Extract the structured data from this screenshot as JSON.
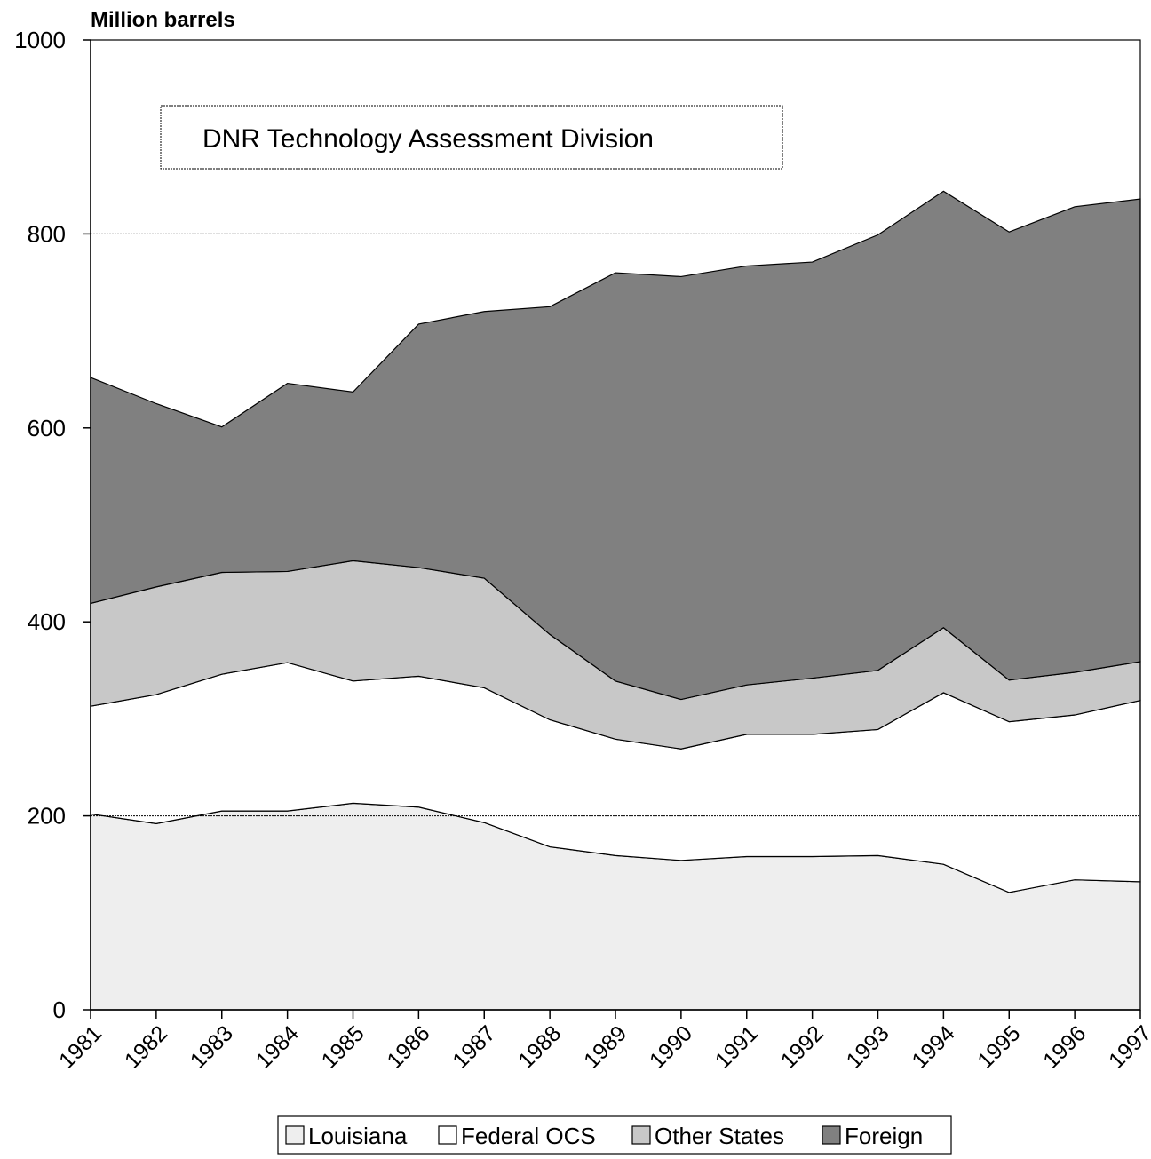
{
  "chart_data": {
    "type": "stacked_area",
    "y_label": "Million barrels",
    "annotation": "DNR Technology Assessment Division",
    "categories": [
      "1981",
      "1982",
      "1983",
      "1984",
      "1985",
      "1986",
      "1987",
      "1988",
      "1989",
      "1990",
      "1991",
      "1992",
      "1993",
      "1994",
      "1995",
      "1996",
      "1997"
    ],
    "series": [
      {
        "name": "Louisiana",
        "color": "#eeeeee",
        "values": [
          202,
          192,
          205,
          205,
          213,
          209,
          193,
          168,
          159,
          154,
          158,
          158,
          159,
          150,
          121,
          134,
          132
        ]
      },
      {
        "name": "Federal OCS",
        "color": "#ffffff",
        "values": [
          111,
          133,
          141,
          153,
          126,
          135,
          139,
          131,
          120,
          115,
          126,
          126,
          130,
          177,
          176,
          170,
          187
        ]
      },
      {
        "name": "Other States",
        "color": "#c8c8c8",
        "values": [
          106,
          111,
          105,
          94,
          124,
          112,
          113,
          88,
          60,
          51,
          51,
          58,
          61,
          67,
          43,
          44,
          40
        ]
      },
      {
        "name": "Foreign",
        "color": "#808080",
        "values": [
          233,
          189,
          150,
          194,
          174,
          251,
          275,
          338,
          421,
          436,
          432,
          429,
          449,
          450,
          462,
          480,
          477
        ]
      }
    ],
    "ylim": [
      0,
      1000
    ],
    "yticks": [
      0,
      200,
      400,
      600,
      800,
      1000
    ],
    "grid": true
  }
}
